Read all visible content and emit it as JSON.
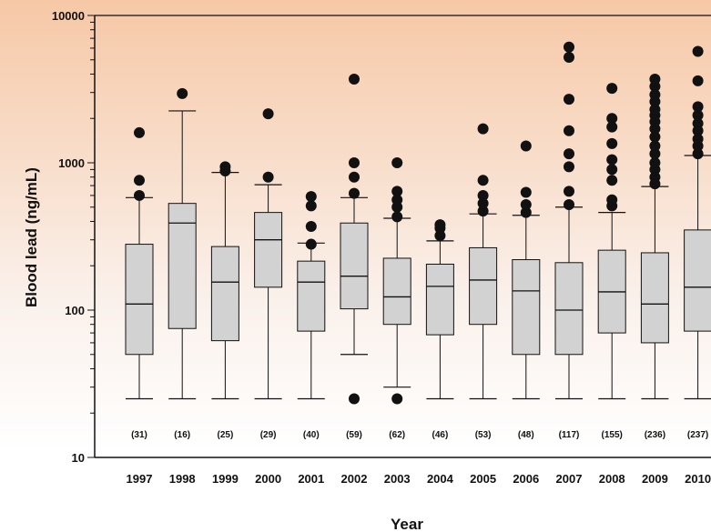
{
  "chart_data": {
    "type": "boxplot",
    "title": "",
    "xlabel": "Year",
    "ylabel": "Blood lead (ng/mL)",
    "yscale": "log",
    "ylim": [
      10,
      10000
    ],
    "yticks": [
      "10",
      "100",
      "1000",
      "10000"
    ],
    "grid": false,
    "categories": [
      "1997",
      "1998",
      "1999",
      "2000",
      "2001",
      "2002",
      "2003",
      "2004",
      "2005",
      "2006",
      "2007",
      "2008",
      "2009",
      "2010"
    ],
    "counts": [
      "(31)",
      "(16)",
      "(25)",
      "(29)",
      "(40)",
      "(59)",
      "(62)",
      "(46)",
      "(53)",
      "(48)",
      "(117)",
      "(155)",
      "(236)",
      "(237)"
    ],
    "boxes": [
      {
        "low": 25,
        "q1": 50,
        "median": 110,
        "q3": 280,
        "high": 580,
        "outliers": [
          600,
          760,
          1600
        ]
      },
      {
        "low": 25,
        "q1": 75,
        "median": 390,
        "q3": 530,
        "high": 2250,
        "outliers": [
          2950
        ]
      },
      {
        "low": 25,
        "q1": 62,
        "median": 155,
        "q3": 270,
        "high": 860,
        "outliers": [
          880,
          940
        ]
      },
      {
        "low": 25,
        "q1": 143,
        "median": 300,
        "q3": 460,
        "high": 710,
        "outliers": [
          800,
          2150
        ]
      },
      {
        "low": 25,
        "q1": 72,
        "median": 155,
        "q3": 215,
        "high": 285,
        "outliers": [
          280,
          370,
          510,
          590
        ]
      },
      {
        "low": 50,
        "q1": 102,
        "median": 170,
        "q3": 390,
        "high": 580,
        "outliers": [
          25,
          620,
          800,
          1000,
          3700
        ]
      },
      {
        "low": 30,
        "q1": 80,
        "median": 123,
        "q3": 225,
        "high": 420,
        "outliers": [
          25,
          430,
          500,
          560,
          640,
          1000
        ]
      },
      {
        "low": 25,
        "q1": 68,
        "median": 145,
        "q3": 205,
        "high": 295,
        "outliers": [
          320,
          360,
          380
        ]
      },
      {
        "low": 25,
        "q1": 80,
        "median": 160,
        "q3": 265,
        "high": 450,
        "outliers": [
          470,
          530,
          600,
          760,
          1700
        ]
      },
      {
        "low": 25,
        "q1": 50,
        "median": 135,
        "q3": 220,
        "high": 440,
        "outliers": [
          460,
          520,
          630,
          1300
        ]
      },
      {
        "low": 25,
        "q1": 50,
        "median": 100,
        "q3": 210,
        "high": 500,
        "outliers": [
          520,
          640,
          940,
          1150,
          1650,
          2700,
          5200,
          6100
        ]
      },
      {
        "low": 25,
        "q1": 70,
        "median": 133,
        "q3": 255,
        "high": 460,
        "outliers": [
          510,
          560,
          760,
          900,
          1050,
          1350,
          1750,
          2000,
          3200
        ]
      },
      {
        "low": 25,
        "q1": 60,
        "median": 110,
        "q3": 245,
        "high": 690,
        "outliers": [
          720,
          800,
          900,
          1000,
          1150,
          1300,
          1500,
          1700,
          1900,
          2100,
          2300,
          2600,
          2900,
          3300,
          3700
        ]
      },
      {
        "low": 25,
        "q1": 72,
        "median": 143,
        "q3": 350,
        "high": 1120,
        "outliers": [
          1150,
          1300,
          1450,
          1650,
          1850,
          2100,
          2400,
          3600,
          5700
        ]
      }
    ]
  }
}
